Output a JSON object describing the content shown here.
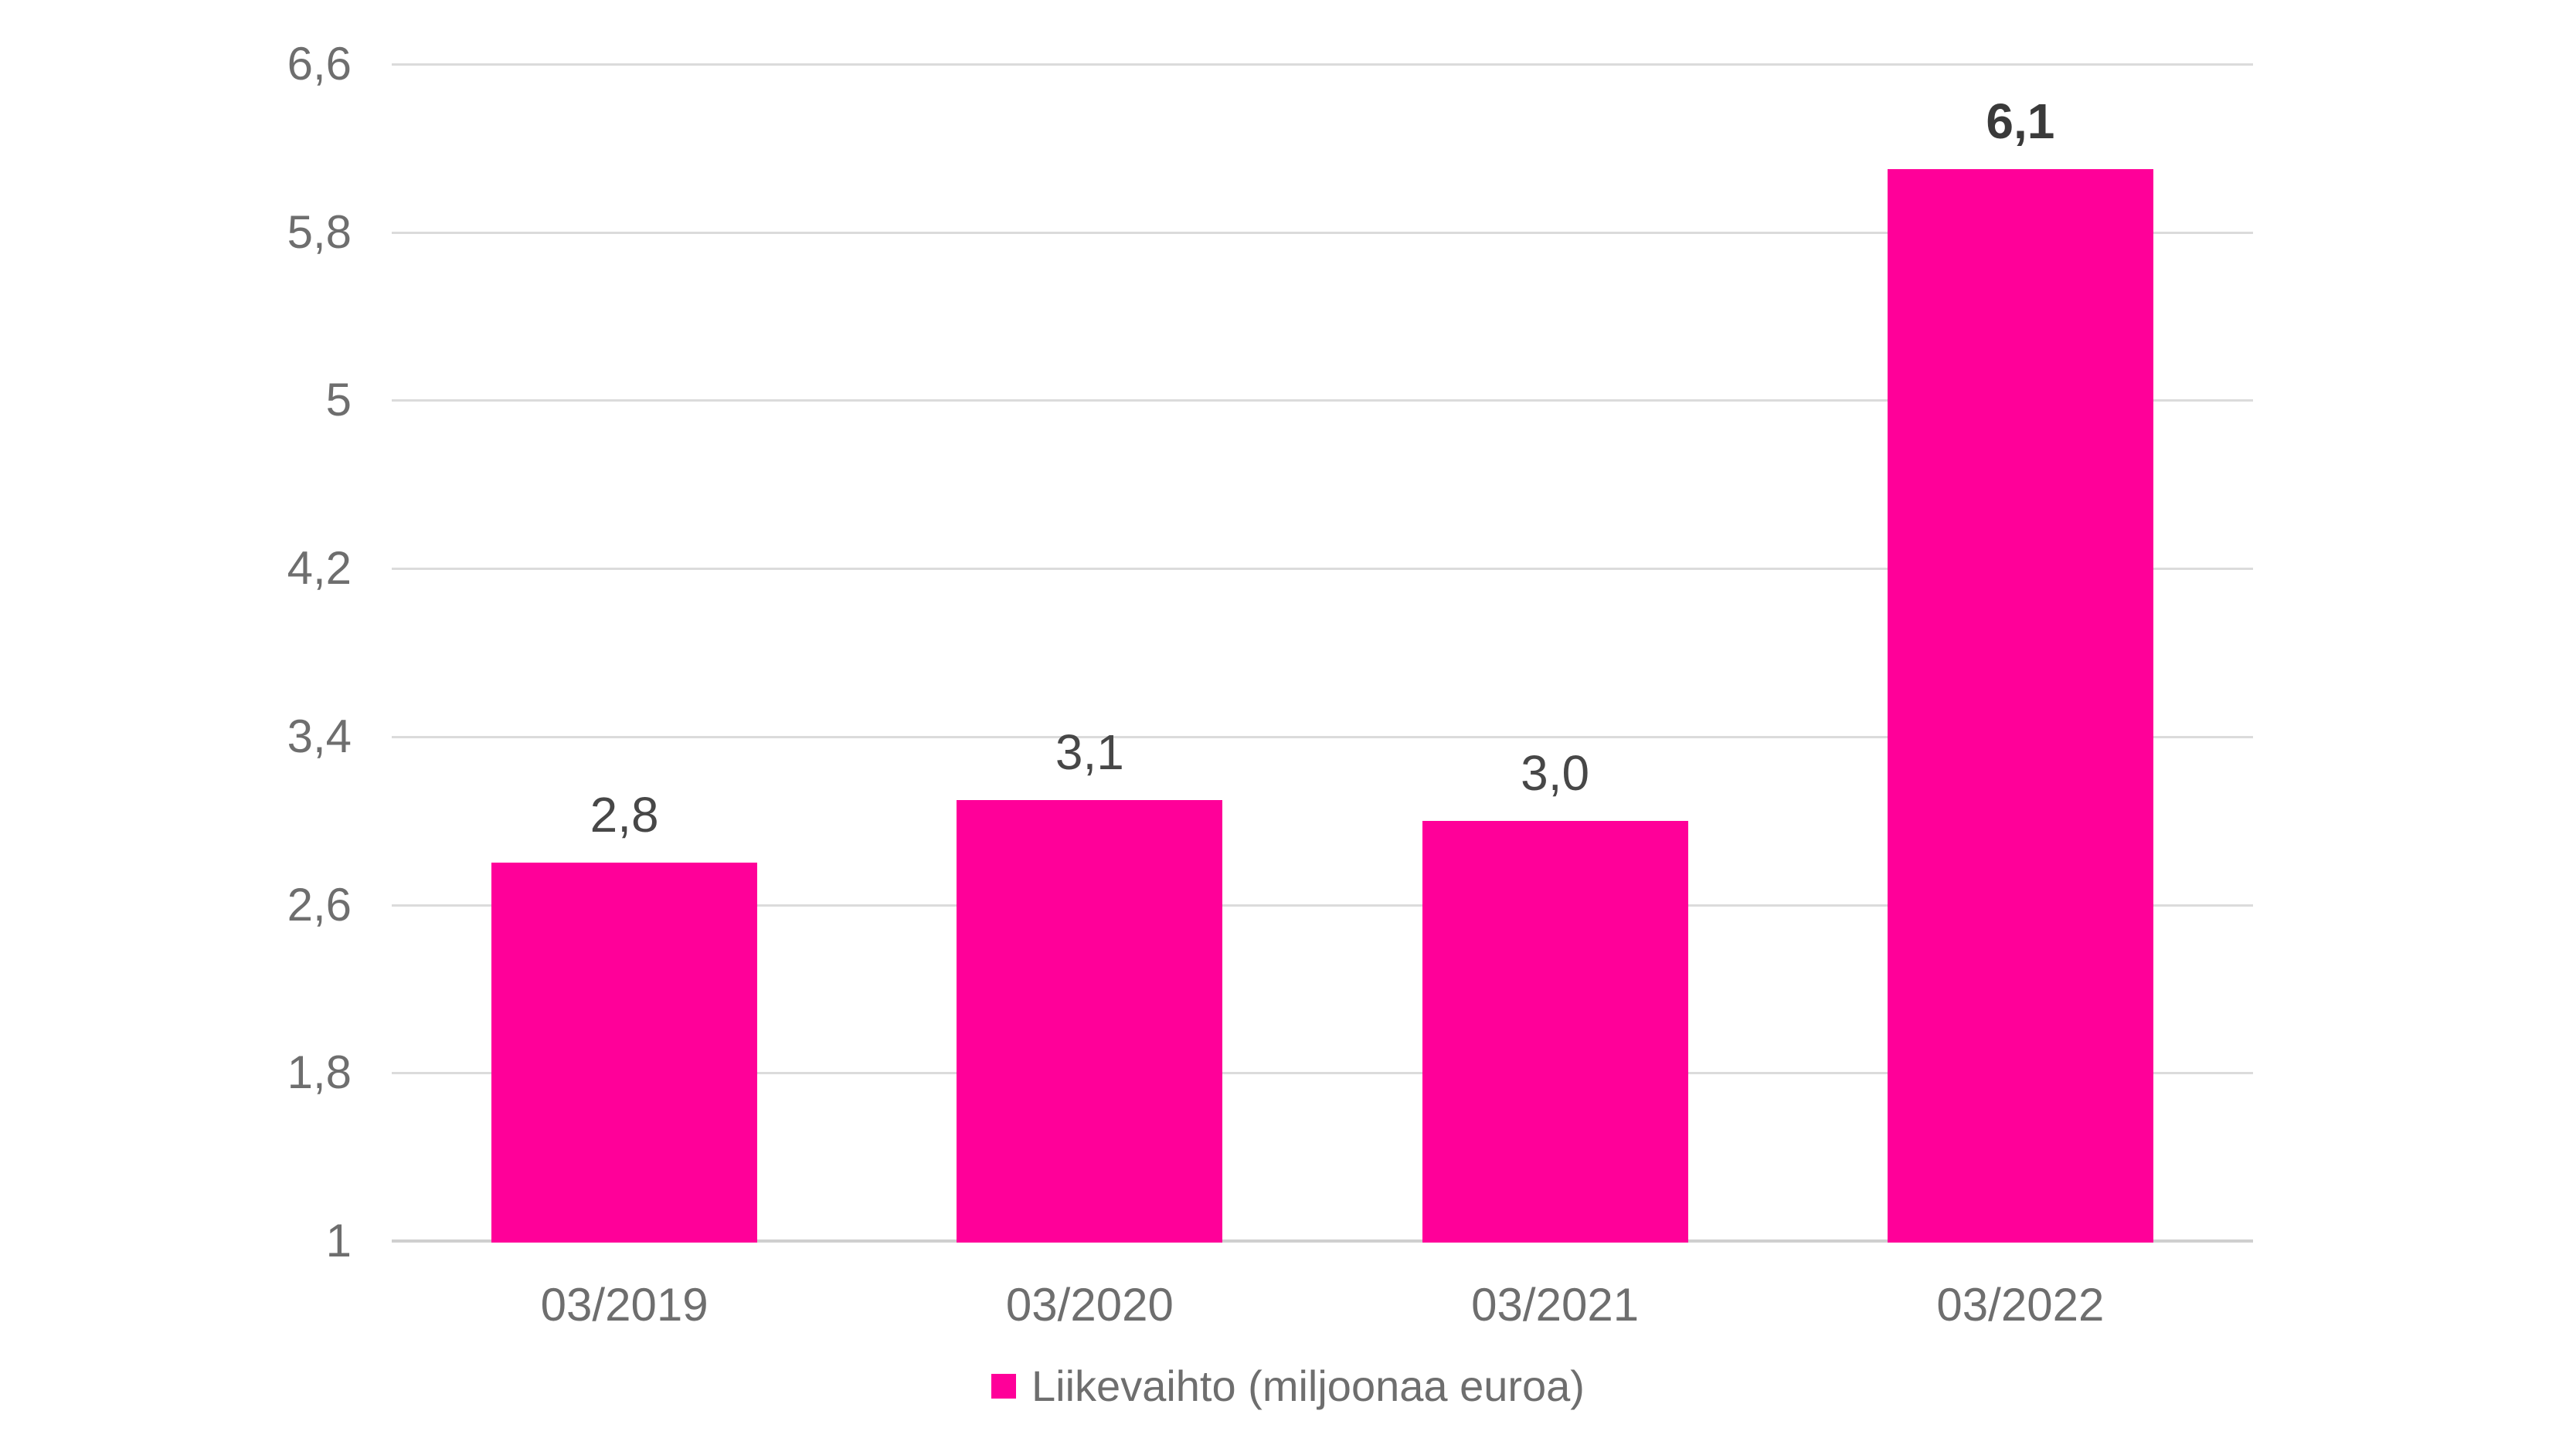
{
  "chart_data": {
    "type": "bar",
    "title": "",
    "categories": [
      "03/2019",
      "03/2020",
      "03/2021",
      "03/2022"
    ],
    "values": [
      2.8,
      3.1,
      3.0,
      6.1
    ],
    "value_labels": [
      "2,8",
      "3,1",
      "3,0",
      "6,1"
    ],
    "emphasized_index": 3,
    "series": [
      {
        "name": "Liikevaihto (miljoonaa euroa)",
        "values": [
          2.8,
          3.1,
          3.0,
          6.1
        ]
      }
    ],
    "xlabel": "",
    "ylabel": "",
    "ylim": [
      1,
      6.6
    ],
    "y_axis": {
      "min": 1,
      "max": 6.6,
      "tick_step": 0.8,
      "tick_values": [
        6.6,
        5.8,
        5,
        4.2,
        3.4,
        2.6,
        1.8,
        1
      ],
      "tick_labels": [
        "6,6",
        "5,8",
        "5",
        "4,2",
        "3,4",
        "2,6",
        "1,8",
        "1"
      ]
    },
    "grid": true,
    "legend_position": "bottom"
  },
  "legend": {
    "label": "Liikevaihto (miljoonaa euroa)"
  },
  "colors": {
    "bar": "#FF0099",
    "grid": "#DBDBDB",
    "axis_line": "#CFCFCF",
    "tick_text": "#6E6E6E",
    "data_label": "#474747",
    "data_label_bold": "#3A3A3A",
    "background": "#FFFFFF"
  }
}
